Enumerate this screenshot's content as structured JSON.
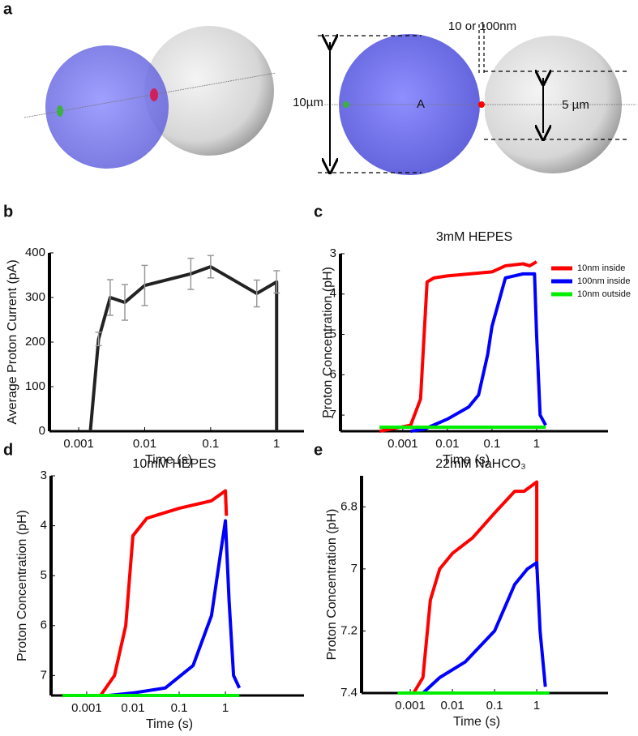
{
  "panel_labels": [
    "a",
    "b",
    "c",
    "d",
    "e"
  ],
  "diagram": {
    "labels": [
      "10 or 100nm",
      "10µm",
      "A",
      "5 µm"
    ]
  },
  "chart_data": [
    {
      "type": "line",
      "xlabel": "Time (s)",
      "ylabel": "Average Proton Current (pA)",
      "xscale": "log",
      "xlim": [
        0.00036,
        2.6
      ],
      "xticks": [
        0.001,
        0.01,
        0.1,
        1
      ],
      "ylim": [
        0,
        400
      ],
      "yticks": [
        0,
        100,
        200,
        300,
        400
      ],
      "series": [
        {
          "color": "#222222",
          "x": [
            0.0015,
            0.002,
            0.003,
            0.005,
            0.01,
            0.05,
            0.1,
            0.5,
            1,
            1
          ],
          "values": [
            0,
            207,
            300,
            289,
            327,
            353,
            369,
            309,
            335,
            0
          ],
          "errors": [
            null,
            15,
            40,
            40,
            45,
            35,
            25,
            30,
            25,
            null
          ]
        }
      ]
    },
    {
      "type": "line",
      "title": "3mM HEPES",
      "xlabel": "Time (s)",
      "ylabel": "Proton Concentration (pH)",
      "xscale": "log",
      "xlim": [
        4e-05,
        40
      ],
      "xticks": [
        0.001,
        0.01,
        0.1,
        1
      ],
      "ylim": [
        7.4,
        3
      ],
      "yticks": [
        3,
        4,
        5,
        6,
        7
      ],
      "legend": "upper right",
      "series": [
        {
          "name": "10nm inside",
          "color": "#ff0000",
          "x": [
            0.0003,
            0.0015,
            0.0025,
            0.0035,
            0.005,
            0.01,
            0.1,
            0.2,
            0.5,
            0.7,
            1
          ],
          "values": [
            7.4,
            7.25,
            6.6,
            3.7,
            3.6,
            3.55,
            3.45,
            3.3,
            3.25,
            3.3,
            3.2
          ]
        },
        {
          "name": "100nm inside",
          "color": "#0000ff",
          "x": [
            0.0015,
            0.003,
            0.01,
            0.03,
            0.05,
            0.08,
            0.1,
            0.2,
            0.5,
            0.9,
            1,
            1.2,
            1.6
          ],
          "values": [
            7.4,
            7.35,
            7.1,
            6.8,
            6.5,
            5.5,
            4.8,
            3.6,
            3.5,
            3.5,
            5,
            7,
            7.25
          ]
        },
        {
          "name": "10nm outside",
          "color": "#00ee00",
          "x": [
            0.0003,
            1.6
          ],
          "values": [
            7.3,
            7.3
          ]
        }
      ]
    },
    {
      "type": "line",
      "title": "10mM HEPES",
      "xlabel": "Time (s)",
      "ylabel": "Proton Concentration (pH)",
      "xscale": "log",
      "xlim": [
        0.00017,
        50
      ],
      "xticks": [
        0.001,
        0.01,
        0.1,
        1
      ],
      "ylim": [
        7.4,
        3
      ],
      "yticks": [
        3,
        4,
        5,
        6,
        7
      ],
      "series": [
        {
          "color": "#ff0000",
          "x": [
            0.002,
            0.004,
            0.007,
            0.01,
            0.02,
            0.1,
            0.5,
            1,
            1.05
          ],
          "values": [
            7.4,
            7.0,
            6.0,
            4.2,
            3.85,
            3.65,
            3.5,
            3.3,
            3.8
          ]
        },
        {
          "color": "#0000ff",
          "x": [
            0.003,
            0.01,
            0.05,
            0.2,
            0.5,
            0.8,
            1,
            1.2,
            1.5,
            2
          ],
          "values": [
            7.4,
            7.35,
            7.25,
            6.8,
            5.8,
            4.5,
            3.9,
            5.5,
            7.0,
            7.25
          ]
        },
        {
          "color": "#00ee00",
          "x": [
            0.0003,
            2
          ],
          "values": [
            7.4,
            7.4
          ]
        }
      ]
    },
    {
      "type": "line",
      "title": "22mM NaHCO₃",
      "xlabel": "Time (s)",
      "ylabel": "Proton Concentration (pH)",
      "xscale": "log",
      "xlim": [
        7e-05,
        49
      ],
      "xticks": [
        0.001,
        0.01,
        0.1,
        1
      ],
      "ylim": [
        7.4,
        6.7
      ],
      "yticks": [
        6.8,
        7,
        7.2,
        7.4
      ],
      "series": [
        {
          "color": "#ff0000",
          "x": [
            0.0012,
            0.002,
            0.003,
            0.005,
            0.01,
            0.03,
            0.1,
            0.3,
            0.5,
            1,
            1
          ],
          "values": [
            7.4,
            7.35,
            7.1,
            7.0,
            6.95,
            6.9,
            6.82,
            6.75,
            6.75,
            6.72,
            7.0
          ]
        },
        {
          "color": "#0000ff",
          "x": [
            0.002,
            0.005,
            0.02,
            0.1,
            0.3,
            0.6,
            1,
            1.2,
            1.6
          ],
          "values": [
            7.4,
            7.35,
            7.3,
            7.2,
            7.05,
            7.0,
            6.98,
            7.2,
            7.38
          ]
        },
        {
          "color": "#00ee00",
          "x": [
            0.0005,
            2
          ],
          "values": [
            7.4,
            7.4
          ]
        }
      ]
    }
  ]
}
